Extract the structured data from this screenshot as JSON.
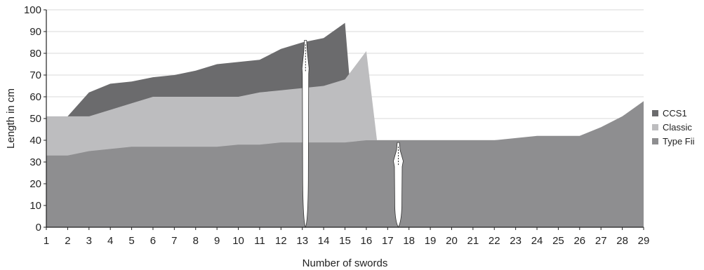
{
  "chart_data": {
    "type": "area",
    "xlabel": "Number of swords",
    "ylabel": "Length in cm",
    "ylim": [
      0,
      100
    ],
    "ytick_step": 10,
    "x": [
      1,
      2,
      3,
      4,
      5,
      6,
      7,
      8,
      9,
      10,
      11,
      12,
      13,
      14,
      15,
      16,
      17,
      18,
      19,
      20,
      21,
      22,
      23,
      24,
      25,
      26,
      27,
      28,
      29
    ],
    "grid": true,
    "legend_position": "right",
    "series": [
      {
        "name": "CCS1",
        "color": "#6b6b6d",
        "points": [
          [
            2,
            51
          ],
          [
            3,
            62
          ],
          [
            4,
            66
          ],
          [
            5,
            67
          ],
          [
            6,
            69
          ],
          [
            7,
            70
          ],
          [
            8,
            72
          ],
          [
            9,
            75
          ],
          [
            10,
            76
          ],
          [
            11,
            77
          ],
          [
            12,
            82
          ],
          [
            13,
            85
          ],
          [
            14,
            87
          ],
          [
            15,
            94
          ],
          [
            15.2,
            70
          ]
        ]
      },
      {
        "name": "Classic",
        "color": "#bdbdbf",
        "points": [
          [
            1,
            51
          ],
          [
            2,
            51
          ],
          [
            3,
            51
          ],
          [
            4,
            54
          ],
          [
            5,
            57
          ],
          [
            6,
            60
          ],
          [
            7,
            60
          ],
          [
            8,
            60
          ],
          [
            9,
            60
          ],
          [
            10,
            60
          ],
          [
            11,
            62
          ],
          [
            12,
            63
          ],
          [
            13,
            64
          ],
          [
            14,
            65
          ],
          [
            15,
            68
          ],
          [
            16,
            81
          ],
          [
            16.5,
            40
          ]
        ]
      },
      {
        "name": "Type Fii",
        "color": "#8e8e90",
        "points": [
          [
            1,
            33
          ],
          [
            2,
            33
          ],
          [
            3,
            35
          ],
          [
            4,
            36
          ],
          [
            5,
            37
          ],
          [
            6,
            37
          ],
          [
            7,
            37
          ],
          [
            8,
            37
          ],
          [
            9,
            37
          ],
          [
            10,
            38
          ],
          [
            11,
            38
          ],
          [
            12,
            39
          ],
          [
            13,
            39
          ],
          [
            14,
            39
          ],
          [
            15,
            39
          ],
          [
            16,
            40
          ],
          [
            17,
            40
          ],
          [
            18,
            40
          ],
          [
            19,
            40
          ],
          [
            20,
            40
          ],
          [
            21,
            40
          ],
          [
            22,
            40
          ],
          [
            23,
            41
          ],
          [
            24,
            42
          ],
          [
            25,
            42
          ],
          [
            26,
            42
          ],
          [
            27,
            46
          ],
          [
            28,
            51
          ],
          [
            29,
            58
          ]
        ]
      }
    ],
    "illustrations": [
      {
        "name": "sword",
        "x": 13.15,
        "top": 86
      },
      {
        "name": "sword",
        "x": 17.5,
        "top": 39
      }
    ]
  }
}
